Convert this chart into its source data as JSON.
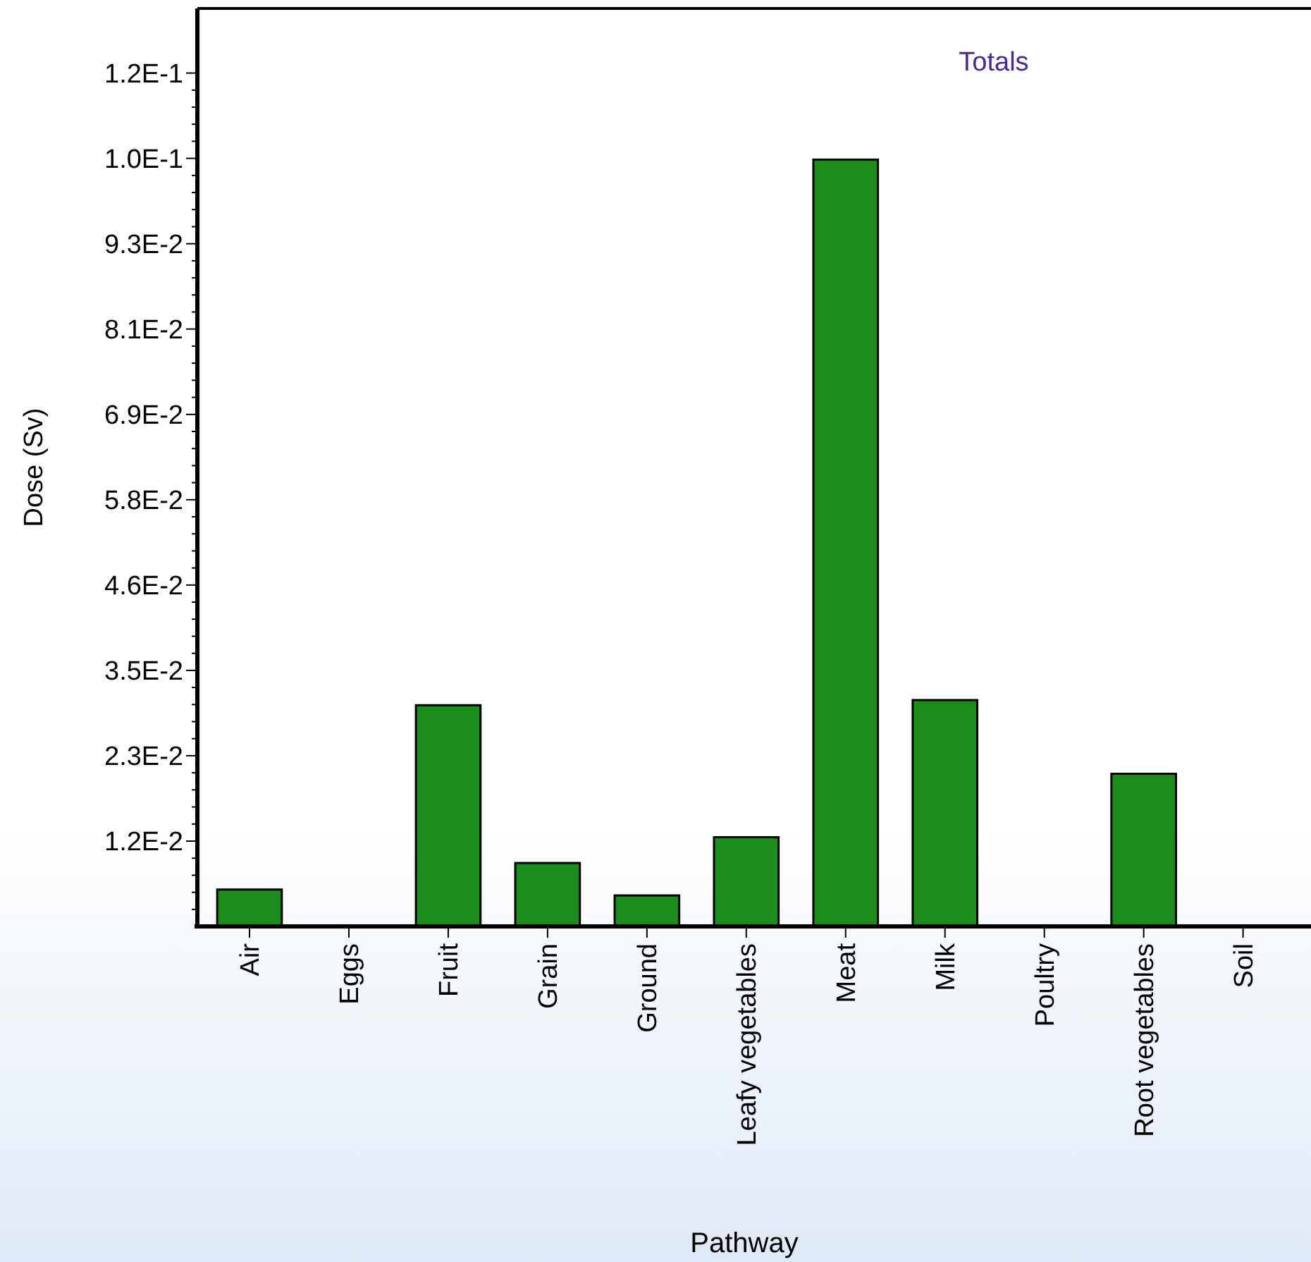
{
  "chart_data": {
    "type": "bar",
    "title": "Totals",
    "xlabel": "Pathway",
    "ylabel": "Dose (Sv)",
    "categories": [
      "Air",
      "Eggs",
      "Fruit",
      "Grain",
      "Ground",
      "Leafy vegetables",
      "Meat",
      "Milk",
      "Poultry",
      "Root vegetables",
      "Soil"
    ],
    "values": [
      0.005,
      0,
      0.03,
      0.0086,
      0.0042,
      0.0121,
      0.104,
      0.0307,
      0,
      0.0207,
      0
    ],
    "color": "#1a8c1a",
    "ylim": [
      0,
      0.1245
    ],
    "yticks": [
      {
        "value": 0.01157,
        "label": "1.2E-2"
      },
      {
        "value": 0.02315,
        "label": "2.3E-2"
      },
      {
        "value": 0.03472,
        "label": "3.5E-2"
      },
      {
        "value": 0.0463,
        "label": "4.6E-2"
      },
      {
        "value": 0.05787,
        "label": "5.8E-2"
      },
      {
        "value": 0.06944,
        "label": "6.9E-2"
      },
      {
        "value": 0.08102,
        "label": "8.1E-2"
      },
      {
        "value": 0.09259,
        "label": "9.3E-2"
      },
      {
        "value": 0.10417,
        "label": "1.0E-1"
      },
      {
        "value": 0.11574,
        "label": "1.2E-1"
      }
    ],
    "grid": false
  }
}
